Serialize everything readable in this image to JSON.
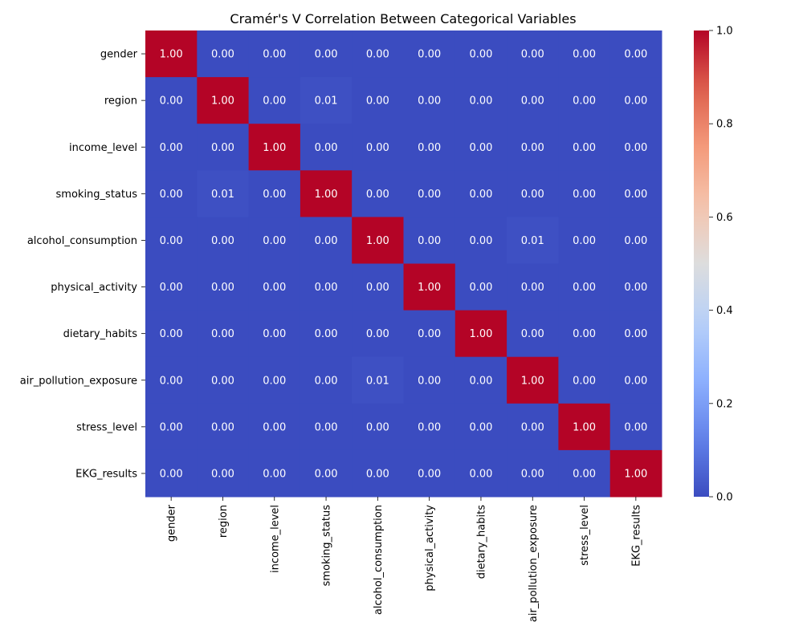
{
  "chart_data": {
    "type": "heatmap",
    "title": "Cramér's V Correlation Between Categorical Variables",
    "row_labels": [
      "gender",
      "region",
      "income_level",
      "smoking_status",
      "alcohol_consumption",
      "physical_activity",
      "dietary_habits",
      "air_pollution_exposure",
      "stress_level",
      "EKG_results"
    ],
    "col_labels": [
      "gender",
      "region",
      "income_level",
      "smoking_status",
      "alcohol_consumption",
      "physical_activity",
      "dietary_habits",
      "air_pollution_exposure",
      "stress_level",
      "EKG_results"
    ],
    "values": [
      [
        1.0,
        0.0,
        0.0,
        0.0,
        0.0,
        0.0,
        0.0,
        0.0,
        0.0,
        0.0
      ],
      [
        0.0,
        1.0,
        0.0,
        0.01,
        0.0,
        0.0,
        0.0,
        0.0,
        0.0,
        0.0
      ],
      [
        0.0,
        0.0,
        1.0,
        0.0,
        0.0,
        0.0,
        0.0,
        0.0,
        0.0,
        0.0
      ],
      [
        0.0,
        0.01,
        0.0,
        1.0,
        0.0,
        0.0,
        0.0,
        0.0,
        0.0,
        0.0
      ],
      [
        0.0,
        0.0,
        0.0,
        0.0,
        1.0,
        0.0,
        0.0,
        0.01,
        0.0,
        0.0
      ],
      [
        0.0,
        0.0,
        0.0,
        0.0,
        0.0,
        1.0,
        0.0,
        0.0,
        0.0,
        0.0
      ],
      [
        0.0,
        0.0,
        0.0,
        0.0,
        0.0,
        0.0,
        1.0,
        0.0,
        0.0,
        0.0
      ],
      [
        0.0,
        0.0,
        0.0,
        0.0,
        0.01,
        0.0,
        0.0,
        1.0,
        0.0,
        0.0
      ],
      [
        0.0,
        0.0,
        0.0,
        0.0,
        0.0,
        0.0,
        0.0,
        0.0,
        1.0,
        0.0
      ],
      [
        0.0,
        0.0,
        0.0,
        0.0,
        0.0,
        0.0,
        0.0,
        0.0,
        0.0,
        1.0
      ]
    ],
    "value_format": "0.00",
    "colormap": "coolwarm",
    "vmin": 0.0,
    "vmax": 1.0,
    "colorbar_ticks": [
      "0.0",
      "0.2",
      "0.4",
      "0.6",
      "0.8",
      "1.0"
    ],
    "colorbar_tick_values": [
      0.0,
      0.2,
      0.4,
      0.6,
      0.8,
      1.0
    ],
    "annotation_color": "#ffffff"
  }
}
